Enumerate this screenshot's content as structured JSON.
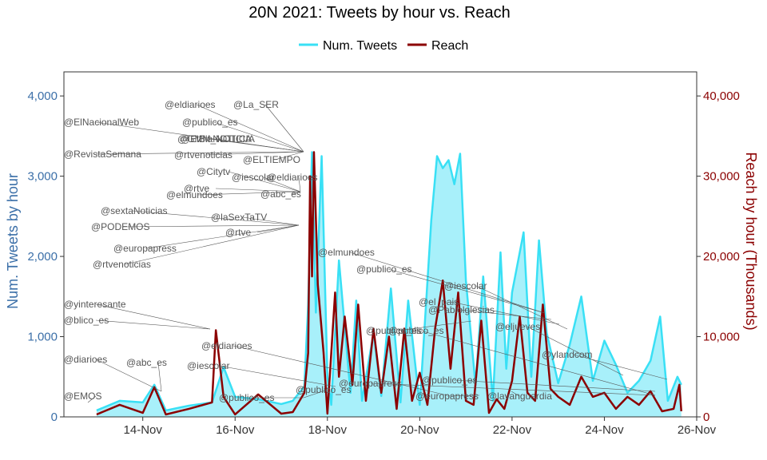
{
  "chart_data": {
    "type": "line",
    "title": "20N 2021: Tweets by hour vs. Reach",
    "ylabel_left": "Num. Tweets by hour",
    "ylabel_right": "Reach by hour (Thousands)",
    "x_range": [
      "2021-11-12T07:00",
      "2021-11-26T00:00"
    ],
    "x_ticks": [
      "14-Nov",
      "16-Nov",
      "18-Nov",
      "20-Nov",
      "22-Nov",
      "24-Nov",
      "26-Nov"
    ],
    "x_tick_dates": [
      "2021-11-14",
      "2021-11-16",
      "2021-11-18",
      "2021-11-20",
      "2021-11-22",
      "2021-11-24",
      "2021-11-26"
    ],
    "y_left_range": [
      0,
      4300
    ],
    "y_left_ticks": [
      "0",
      "1,000",
      "2,000",
      "3,000",
      "4,000"
    ],
    "y_left_tick_values": [
      0,
      1000,
      2000,
      3000,
      4000
    ],
    "y_right_range": [
      0,
      43000
    ],
    "y_right_ticks": [
      "0",
      "10,000",
      "20,000",
      "30,000",
      "40,000"
    ],
    "y_right_tick_values": [
      0,
      10000,
      20000,
      30000,
      40000
    ],
    "series": [
      {
        "name": "Num. Tweets",
        "color": "#39E0F5",
        "fill": "#A8F0FA",
        "axis": "left",
        "x": [
          "2021-11-13T00:00",
          "2021-11-13T12:00",
          "2021-11-14T00:00",
          "2021-11-14T06:00",
          "2021-11-14T12:00",
          "2021-11-15T00:00",
          "2021-11-15T12:00",
          "2021-11-15T18:00",
          "2021-11-16T00:00",
          "2021-11-16T12:00",
          "2021-11-17T00:00",
          "2021-11-17T06:00",
          "2021-11-17T12:00",
          "2021-11-17T14:00",
          "2021-11-17T16:00",
          "2021-11-17T18:00",
          "2021-11-17T21:00",
          "2021-11-18T00:00",
          "2021-11-18T02:00",
          "2021-11-18T06:00",
          "2021-11-18T12:00",
          "2021-11-18T15:00",
          "2021-11-18T18:00",
          "2021-11-19T00:00",
          "2021-11-19T04:00",
          "2021-11-19T09:00",
          "2021-11-19T14:00",
          "2021-11-19T18:00",
          "2021-11-20T00:00",
          "2021-11-20T06:00",
          "2021-11-20T09:00",
          "2021-11-20T12:00",
          "2021-11-20T15:00",
          "2021-11-20T18:00",
          "2021-11-20T21:00",
          "2021-11-21T00:00",
          "2021-11-21T05:00",
          "2021-11-21T09:00",
          "2021-11-21T14:00",
          "2021-11-21T18:00",
          "2021-11-21T21:00",
          "2021-11-22T00:00",
          "2021-11-22T06:00",
          "2021-11-22T10:00",
          "2021-11-22T14:00",
          "2021-11-22T18:00",
          "2021-11-23T00:00",
          "2021-11-23T06:00",
          "2021-11-23T12:00",
          "2021-11-23T18:00",
          "2021-11-24T00:00",
          "2021-11-24T06:00",
          "2021-11-24T12:00",
          "2021-11-24T18:00",
          "2021-11-25T00:00",
          "2021-11-25T05:00",
          "2021-11-25T09:00",
          "2021-11-25T14:00",
          "2021-11-25T16:00"
        ],
        "values": [
          80,
          200,
          180,
          400,
          80,
          140,
          180,
          620,
          250,
          220,
          160,
          200,
          380,
          1400,
          3300,
          1300,
          3250,
          500,
          150,
          1950,
          300,
          1450,
          200,
          1050,
          260,
          1600,
          180,
          1450,
          150,
          2450,
          3250,
          3100,
          3200,
          2900,
          3280,
          1700,
          400,
          1750,
          200,
          2050,
          600,
          1550,
          2300,
          500,
          2200,
          1050,
          420,
          900,
          1500,
          450,
          950,
          650,
          300,
          450,
          700,
          1250,
          200,
          500,
          400
        ]
      },
      {
        "name": "Reach",
        "color": "#8B0000",
        "axis": "right",
        "x": [
          "2021-11-13T00:00",
          "2021-11-13T12:00",
          "2021-11-14T00:00",
          "2021-11-14T06:00",
          "2021-11-14T12:00",
          "2021-11-15T00:00",
          "2021-11-15T12:00",
          "2021-11-15T14:00",
          "2021-11-15T18:00",
          "2021-11-16T00:00",
          "2021-11-16T12:00",
          "2021-11-17T00:00",
          "2021-11-17T06:00",
          "2021-11-17T12:00",
          "2021-11-17T14:00",
          "2021-11-17T15:00",
          "2021-11-17T16:00",
          "2021-11-17T17:00",
          "2021-11-17T19:00",
          "2021-11-17T22:00",
          "2021-11-18T00:00",
          "2021-11-18T04:00",
          "2021-11-18T06:00",
          "2021-11-18T09:00",
          "2021-11-18T13:00",
          "2021-11-18T16:00",
          "2021-11-18T20:00",
          "2021-11-19T00:00",
          "2021-11-19T04:00",
          "2021-11-19T08:00",
          "2021-11-19T12:00",
          "2021-11-19T16:00",
          "2021-11-19T20:00",
          "2021-11-20T00:00",
          "2021-11-20T04:00",
          "2021-11-20T08:00",
          "2021-11-20T12:00",
          "2021-11-20T16:00",
          "2021-11-20T20:00",
          "2021-11-21T00:00",
          "2021-11-21T04:00",
          "2021-11-21T08:00",
          "2021-11-21T12:00",
          "2021-11-21T16:00",
          "2021-11-21T20:00",
          "2021-11-22T00:00",
          "2021-11-22T04:00",
          "2021-11-22T08:00",
          "2021-11-22T12:00",
          "2021-11-22T16:00",
          "2021-11-22T20:00",
          "2021-11-23T00:00",
          "2021-11-23T06:00",
          "2021-11-23T12:00",
          "2021-11-23T18:00",
          "2021-11-24T00:00",
          "2021-11-24T06:00",
          "2021-11-24T12:00",
          "2021-11-24T18:00",
          "2021-11-25T00:00",
          "2021-11-25T06:00",
          "2021-11-25T12:00",
          "2021-11-25T15:00",
          "2021-11-25T16:00"
        ],
        "values": [
          300,
          1500,
          500,
          3700,
          300,
          1000,
          1800,
          10800,
          2500,
          300,
          2800,
          400,
          600,
          3000,
          8000,
          30000,
          17500,
          33000,
          16500,
          8000,
          400,
          15500,
          5000,
          12500,
          4000,
          14000,
          2000,
          11000,
          3000,
          10000,
          1000,
          11000,
          2000,
          5500,
          1500,
          11000,
          17000,
          6000,
          15500,
          2000,
          1500,
          12000,
          500,
          2200,
          1000,
          4500,
          12500,
          3000,
          2000,
          14000,
          3500,
          2500,
          1500,
          5000,
          2500,
          3000,
          1000,
          2500,
          1500,
          3200,
          700,
          1000,
          4000,
          700
        ]
      }
    ],
    "annotations": [
      "@eldiarioes",
      "@La_SER",
      "@ElNacionalWeb",
      "@publico_es",
      "@GMM_NOTICIA",
      "@ElBlaNOTICIA",
      "@RevistaSemana",
      "@rtvenoticias",
      "@ELTIEMPO",
      "@Citytv",
      "@iescolar",
      "@eldiarioes",
      "@rtve",
      "@abc_es",
      "@elmundoes",
      "@sextaNoticias",
      "@laSexTaTV",
      "@PODEMOS",
      "@rtve",
      "@europapress",
      "@rtvenoticias",
      "@elmundoes",
      "@publico_es",
      "@iescolar",
      "@el_pais",
      "@Pablolglesias",
      "@publico_es",
      "@eljueves",
      "@ylandcom",
      "@yinteresante",
      "@blico_es",
      "@eldiarioes",
      "@diarioes",
      "@abc_es",
      "@iescolar",
      "@publico_es",
      "@publico_es",
      "@europapress",
      "@publico_es",
      "@publico_es",
      "@europapress",
      "@lavanguardia",
      "@EMOS"
    ],
    "legend_position": "top",
    "grid": false
  }
}
